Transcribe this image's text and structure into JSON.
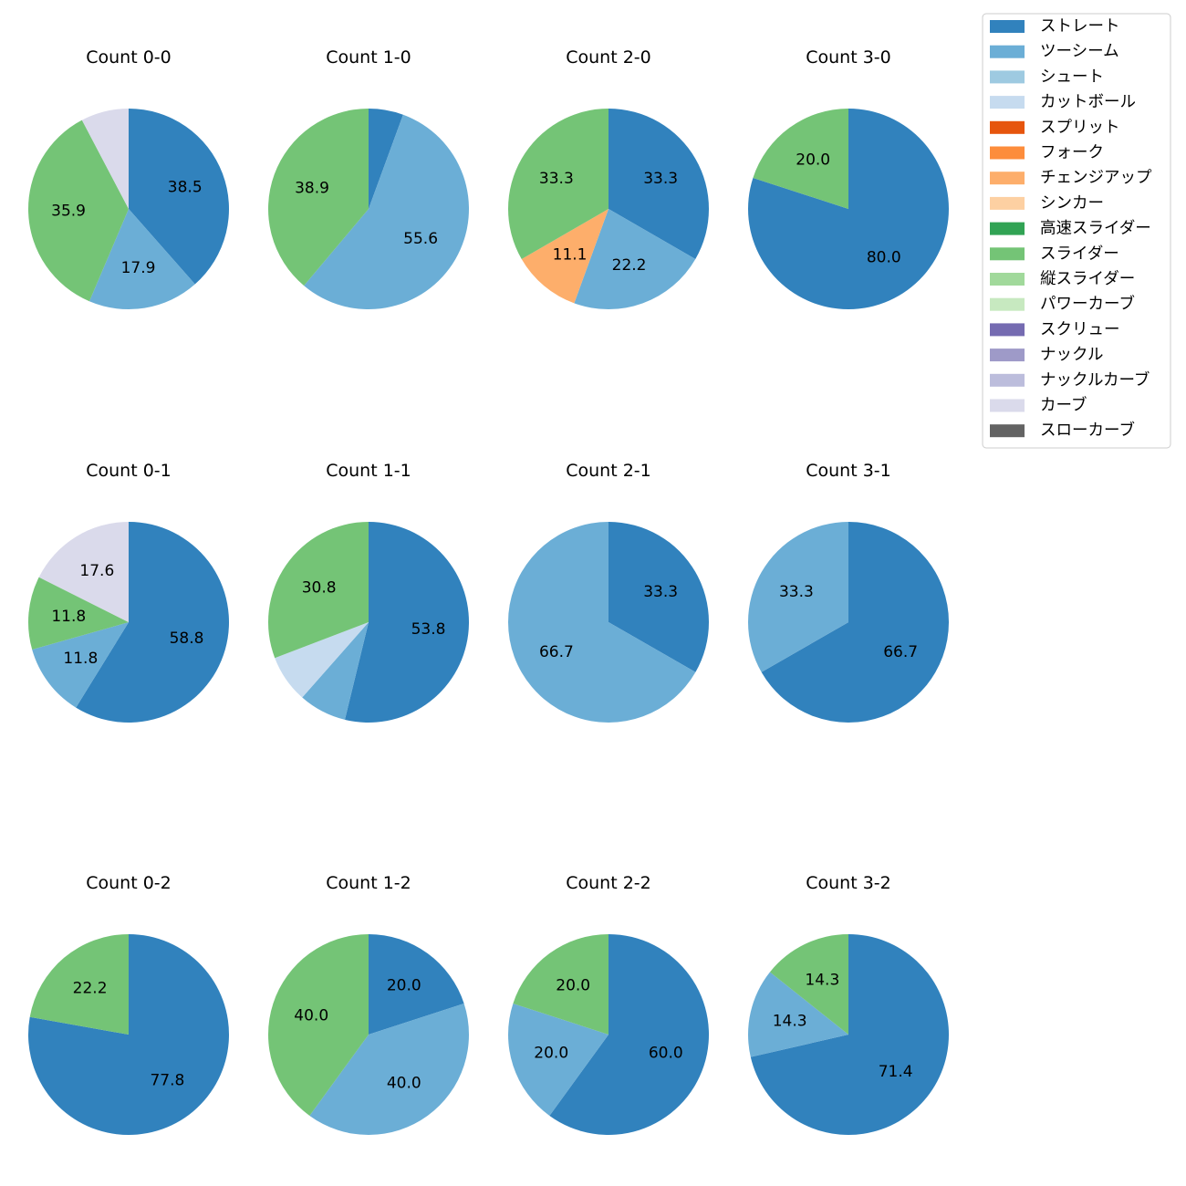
{
  "legend": [
    {
      "name": "ストレート",
      "color": "#3182bd"
    },
    {
      "name": "ツーシーム",
      "color": "#6baed6"
    },
    {
      "name": "シュート",
      "color": "#9ecae1"
    },
    {
      "name": "カットボール",
      "color": "#c6dbef"
    },
    {
      "name": "スプリット",
      "color": "#e6550d"
    },
    {
      "name": "フォーク",
      "color": "#fd8d3c"
    },
    {
      "name": "チェンジアップ",
      "color": "#fdae6b"
    },
    {
      "name": "シンカー",
      "color": "#fdd0a2"
    },
    {
      "name": "高速スライダー",
      "color": "#31a354"
    },
    {
      "name": "スライダー",
      "color": "#74c476"
    },
    {
      "name": "縦スライダー",
      "color": "#a1d99b"
    },
    {
      "name": "パワーカーブ",
      "color": "#c7e9c0"
    },
    {
      "name": "スクリュー",
      "color": "#756bb1"
    },
    {
      "name": "ナックル",
      "color": "#9e9ac8"
    },
    {
      "name": "ナックルカーブ",
      "color": "#bcbddc"
    },
    {
      "name": "カーブ",
      "color": "#dadaeb"
    },
    {
      "name": "スローカーブ",
      "color": "#636363"
    }
  ],
  "chart_data": [
    {
      "type": "pie",
      "title": "Count 0-0",
      "slices": [
        {
          "category": "ストレート",
          "value": 38.5,
          "label": "38.5"
        },
        {
          "category": "ツーシーム",
          "value": 17.9,
          "label": "17.9"
        },
        {
          "category": "スライダー",
          "value": 35.9,
          "label": "35.9"
        },
        {
          "category": "カーブ",
          "value": 7.7,
          "label": ""
        }
      ]
    },
    {
      "type": "pie",
      "title": "Count 1-0",
      "slices": [
        {
          "category": "ストレート",
          "value": 5.6,
          "label": ""
        },
        {
          "category": "ツーシーム",
          "value": 55.6,
          "label": "55.6"
        },
        {
          "category": "スライダー",
          "value": 38.9,
          "label": "38.9"
        }
      ]
    },
    {
      "type": "pie",
      "title": "Count 2-0",
      "slices": [
        {
          "category": "ストレート",
          "value": 33.3,
          "label": "33.3"
        },
        {
          "category": "ツーシーム",
          "value": 22.2,
          "label": "22.2"
        },
        {
          "category": "チェンジアップ",
          "value": 11.1,
          "label": "11.1"
        },
        {
          "category": "スライダー",
          "value": 33.3,
          "label": "33.3"
        }
      ]
    },
    {
      "type": "pie",
      "title": "Count 3-0",
      "slices": [
        {
          "category": "ストレート",
          "value": 80.0,
          "label": "80.0"
        },
        {
          "category": "スライダー",
          "value": 20.0,
          "label": "20.0"
        }
      ]
    },
    {
      "type": "pie",
      "title": "Count 0-1",
      "slices": [
        {
          "category": "ストレート",
          "value": 58.8,
          "label": "58.8"
        },
        {
          "category": "ツーシーム",
          "value": 11.8,
          "label": "11.8"
        },
        {
          "category": "スライダー",
          "value": 11.8,
          "label": "11.8"
        },
        {
          "category": "カーブ",
          "value": 17.6,
          "label": "17.6"
        }
      ]
    },
    {
      "type": "pie",
      "title": "Count 1-1",
      "slices": [
        {
          "category": "ストレート",
          "value": 53.8,
          "label": "53.8"
        },
        {
          "category": "ツーシーム",
          "value": 7.7,
          "label": ""
        },
        {
          "category": "カットボール",
          "value": 7.7,
          "label": ""
        },
        {
          "category": "スライダー",
          "value": 30.8,
          "label": "30.8"
        }
      ]
    },
    {
      "type": "pie",
      "title": "Count 2-1",
      "slices": [
        {
          "category": "ストレート",
          "value": 33.3,
          "label": "33.3"
        },
        {
          "category": "ツーシーム",
          "value": 66.7,
          "label": "66.7"
        }
      ]
    },
    {
      "type": "pie",
      "title": "Count 3-1",
      "slices": [
        {
          "category": "ストレート",
          "value": 66.7,
          "label": "66.7"
        },
        {
          "category": "ツーシーム",
          "value": 33.3,
          "label": "33.3"
        }
      ]
    },
    {
      "type": "pie",
      "title": "Count 0-2",
      "slices": [
        {
          "category": "ストレート",
          "value": 77.8,
          "label": "77.8"
        },
        {
          "category": "スライダー",
          "value": 22.2,
          "label": "22.2"
        }
      ]
    },
    {
      "type": "pie",
      "title": "Count 1-2",
      "slices": [
        {
          "category": "ストレート",
          "value": 20.0,
          "label": "20.0"
        },
        {
          "category": "ツーシーム",
          "value": 40.0,
          "label": "40.0"
        },
        {
          "category": "スライダー",
          "value": 40.0,
          "label": "40.0"
        }
      ]
    },
    {
      "type": "pie",
      "title": "Count 2-2",
      "slices": [
        {
          "category": "ストレート",
          "value": 60.0,
          "label": "60.0"
        },
        {
          "category": "ツーシーム",
          "value": 20.0,
          "label": "20.0"
        },
        {
          "category": "スライダー",
          "value": 20.0,
          "label": "20.0"
        }
      ]
    },
    {
      "type": "pie",
      "title": "Count 3-2",
      "slices": [
        {
          "category": "ストレート",
          "value": 71.4,
          "label": "71.4"
        },
        {
          "category": "ツーシーム",
          "value": 14.3,
          "label": "14.3"
        },
        {
          "category": "スライダー",
          "value": 14.3,
          "label": "14.3"
        }
      ]
    }
  ]
}
